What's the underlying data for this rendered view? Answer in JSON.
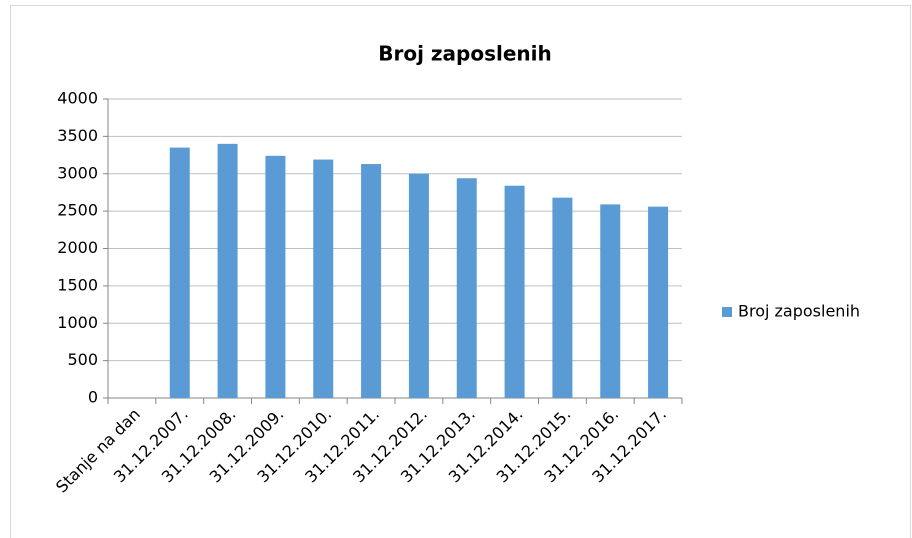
{
  "chart_data": {
    "type": "bar",
    "title": "Broj zaposlenih",
    "categories": [
      "Stanje na dan",
      "31.12.2007.",
      "31.12.2008.",
      "31.12.2009.",
      "31.12.2010.",
      "31.12.2011.",
      "31.12.2012.",
      "31.12.2013.",
      "31.12.2014.",
      "31.12.2015.",
      "31.12.2016.",
      "31.12.2017."
    ],
    "series": [
      {
        "name": "Broj zaposlenih",
        "color": "#5b9bd5",
        "values": [
          null,
          3350,
          3400,
          3240,
          3190,
          3130,
          3000,
          2940,
          2840,
          2680,
          2590,
          2560
        ]
      }
    ],
    "ylim": [
      0,
      4000
    ],
    "yticks": [
      0,
      500,
      1000,
      1500,
      2000,
      2500,
      3000,
      3500,
      4000
    ],
    "grid": true,
    "legend": "right"
  }
}
